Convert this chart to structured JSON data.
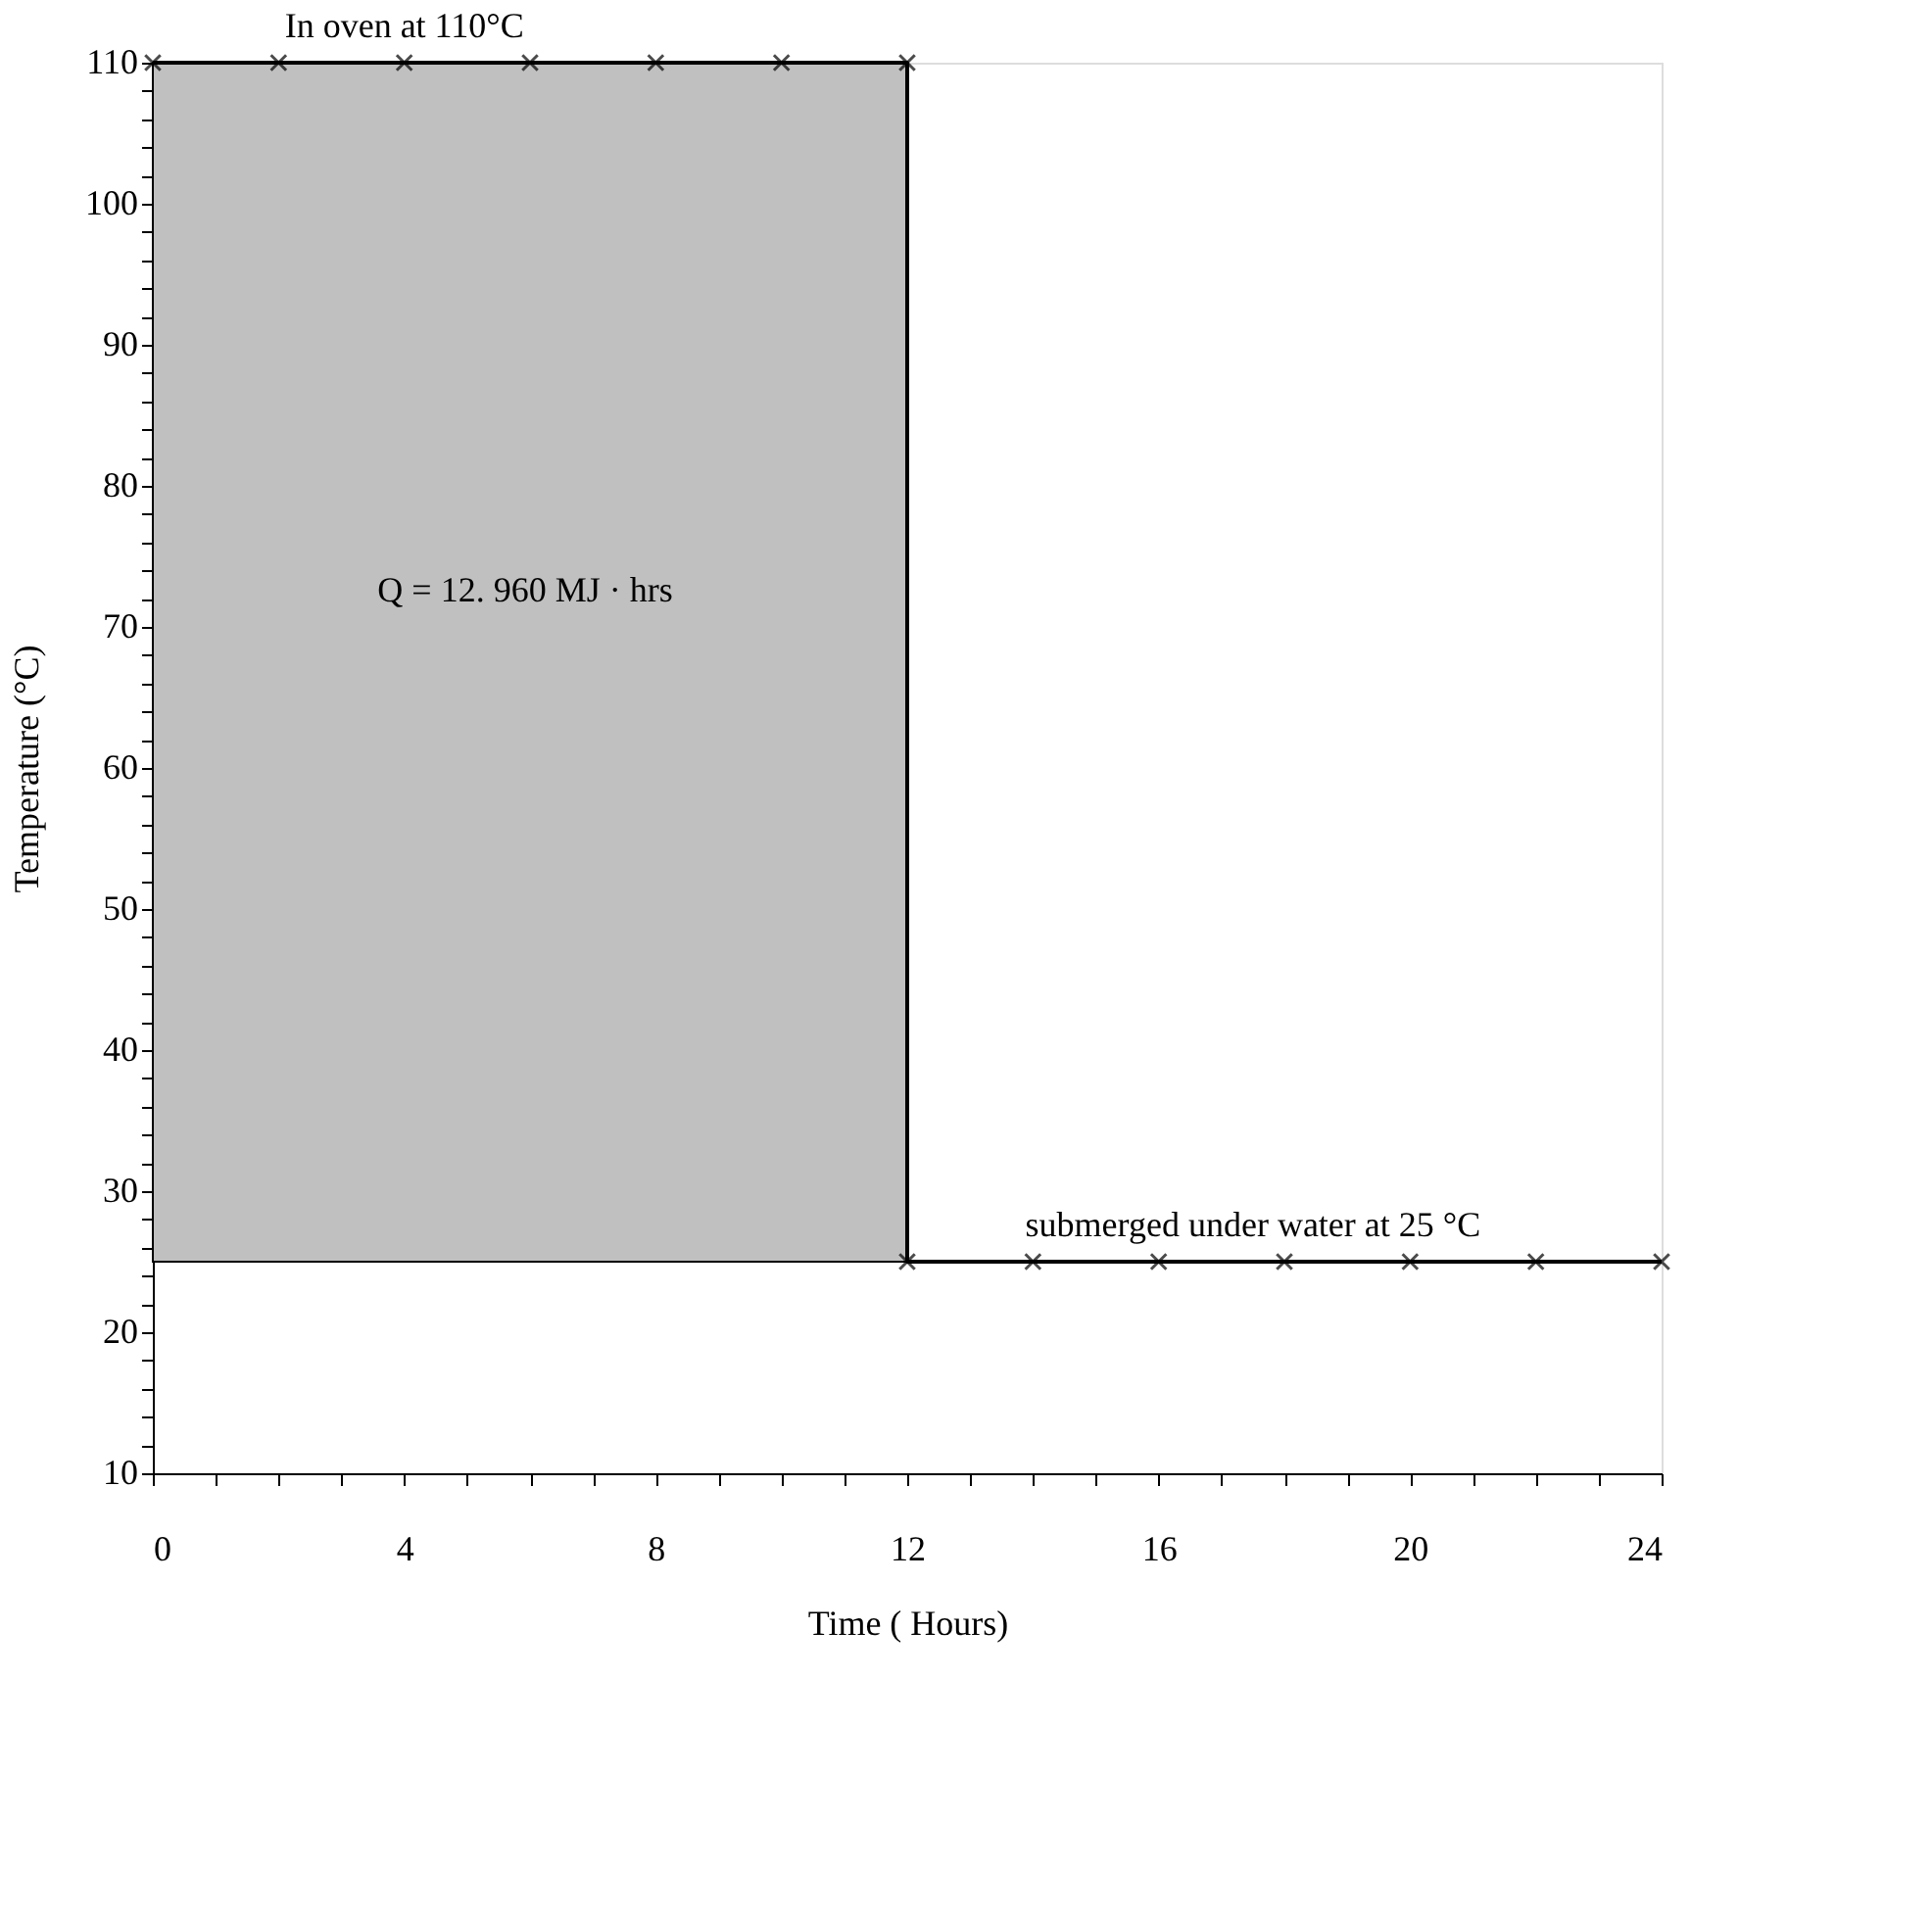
{
  "chart_data": {
    "type": "line",
    "xlabel": "Time ( Hours)",
    "ylabel": "Temperature (°C)",
    "xlim": [
      0,
      24
    ],
    "ylim": [
      10,
      110
    ],
    "xticks": [
      0,
      {
        "value": 1,
        "label": null
      },
      {
        "value": 2,
        "label": null
      },
      {
        "value": 3,
        "label": null
      },
      4,
      {
        "value": 5,
        "label": null
      },
      {
        "value": 6,
        "label": null
      },
      {
        "value": 7,
        "label": null
      },
      8,
      {
        "value": 9,
        "label": null
      },
      {
        "value": 10,
        "label": null
      },
      {
        "value": 11,
        "label": null
      },
      12,
      {
        "value": 13,
        "label": null
      },
      {
        "value": 14,
        "label": null
      },
      {
        "value": 15,
        "label": null
      },
      16,
      {
        "value": 17,
        "label": null
      },
      {
        "value": 18,
        "label": null
      },
      {
        "value": 19,
        "label": null
      },
      20,
      {
        "value": 21,
        "label": null
      },
      {
        "value": 22,
        "label": null
      },
      {
        "value": 23,
        "label": null
      },
      24
    ],
    "yticks": [
      10,
      {
        "value": 12,
        "label": null
      },
      {
        "value": 14,
        "label": null
      },
      {
        "value": 16,
        "label": null
      },
      {
        "value": 18,
        "label": null
      },
      20,
      {
        "value": 22,
        "label": null
      },
      {
        "value": 24,
        "label": null
      },
      {
        "value": 26,
        "label": null
      },
      {
        "value": 28,
        "label": null
      },
      30,
      {
        "value": 32,
        "label": null
      },
      {
        "value": 34,
        "label": null
      },
      {
        "value": 36,
        "label": null
      },
      {
        "value": 38,
        "label": null
      },
      40,
      {
        "value": 42,
        "label": null
      },
      {
        "value": 44,
        "label": null
      },
      {
        "value": 46,
        "label": null
      },
      {
        "value": 48,
        "label": null
      },
      50,
      {
        "value": 52,
        "label": null
      },
      {
        "value": 54,
        "label": null
      },
      {
        "value": 56,
        "label": null
      },
      {
        "value": 58,
        "label": null
      },
      60,
      {
        "value": 62,
        "label": null
      },
      {
        "value": 64,
        "label": null
      },
      {
        "value": 66,
        "label": null
      },
      {
        "value": 68,
        "label": null
      },
      70,
      {
        "value": 72,
        "label": null
      },
      {
        "value": 74,
        "label": null
      },
      {
        "value": 76,
        "label": null
      },
      {
        "value": 78,
        "label": null
      },
      80,
      {
        "value": 82,
        "label": null
      },
      {
        "value": 84,
        "label": null
      },
      {
        "value": 86,
        "label": null
      },
      {
        "value": 88,
        "label": null
      },
      90,
      {
        "value": 92,
        "label": null
      },
      {
        "value": 94,
        "label": null
      },
      {
        "value": 96,
        "label": null
      },
      {
        "value": 98,
        "label": null
      },
      100,
      {
        "value": 102,
        "label": null
      },
      {
        "value": 104,
        "label": null
      },
      {
        "value": 106,
        "label": null
      },
      {
        "value": 108,
        "label": null
      },
      110
    ],
    "marker": "cross",
    "line_style": "solid",
    "series": [
      {
        "color": "#000000",
        "x": [
          0,
          2,
          4,
          6,
          8,
          10,
          12,
          12,
          14,
          16,
          18,
          20,
          22,
          24
        ],
        "values": [
          110,
          110,
          110,
          110,
          110,
          110,
          110,
          25,
          25,
          25,
          25,
          25,
          25,
          25
        ],
        "lower": [
          25,
          25,
          25,
          25,
          25,
          25,
          25,
          null,
          null,
          null,
          null,
          null,
          null,
          null
        ],
        "upper": [
          110,
          110,
          110,
          110,
          110,
          110,
          110,
          null,
          null,
          null,
          null,
          null,
          null,
          null
        ]
      }
    ],
    "annotations": [
      {
        "text": "In oven at 110°C",
        "x": 4,
        "y": 110
      },
      "Q = 12. 960 MJ · hrs",
      {
        "text": "submerged under water at 25 °C",
        "x": 17.5,
        "y": 25
      }
    ]
  }
}
